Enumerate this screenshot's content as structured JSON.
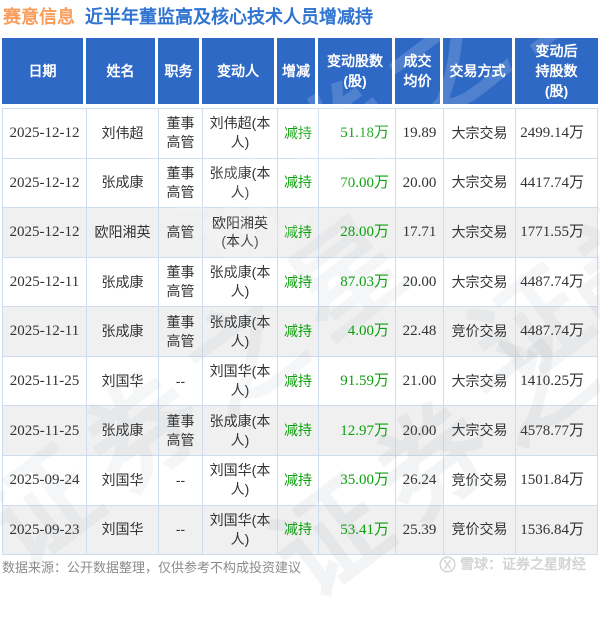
{
  "title": {
    "stock": "赛意信息",
    "subtitle": "近半年董监高及核心技术人员增减持"
  },
  "table": {
    "header_lines": [
      "日期",
      "姓名",
      "职务",
      "变动人",
      "增减",
      "变动股数\n(股)",
      "成交\n均价",
      "交易方式",
      "变动后\n持股数\n(股)"
    ]
  },
  "chart_data": {
    "type": "table",
    "title": "赛意信息 近半年董监高及核心技术人员增减持",
    "columns": [
      "日期",
      "姓名",
      "职务",
      "变动人",
      "增减",
      "变动股数(股)",
      "成交均价",
      "交易方式",
      "变动后持股数(股)"
    ],
    "rows": [
      [
        "2025-12-12",
        "刘伟超",
        "董事高管",
        "刘伟超(本人)",
        "减持",
        "51.18万",
        "19.89",
        "大宗交易",
        "2499.14万"
      ],
      [
        "2025-12-12",
        "张成康",
        "董事高管",
        "张成康(本人)",
        "减持",
        "70.00万",
        "20.00",
        "大宗交易",
        "4417.74万"
      ],
      [
        "2025-12-12",
        "欧阳湘英",
        "高管",
        "欧阳湘英(本人)",
        "减持",
        "28.00万",
        "17.71",
        "大宗交易",
        "1771.55万"
      ],
      [
        "2025-12-11",
        "张成康",
        "董事高管",
        "张成康(本人)",
        "减持",
        "87.03万",
        "20.00",
        "大宗交易",
        "4487.74万"
      ],
      [
        "2025-12-11",
        "张成康",
        "董事高管",
        "张成康(本人)",
        "减持",
        "4.00万",
        "22.48",
        "竞价交易",
        "4487.74万"
      ],
      [
        "2025-11-25",
        "刘国华",
        "--",
        "刘国华(本人)",
        "减持",
        "91.59万",
        "21.00",
        "大宗交易",
        "1410.25万"
      ],
      [
        "2025-11-25",
        "张成康",
        "董事高管",
        "张成康(本人)",
        "减持",
        "12.97万",
        "20.00",
        "大宗交易",
        "4578.77万"
      ],
      [
        "2025-09-24",
        "刘国华",
        "--",
        "刘国华(本人)",
        "减持",
        "35.00万",
        "26.24",
        "竞价交易",
        "1501.84万"
      ],
      [
        "2025-09-23",
        "刘国华",
        "--",
        "刘国华(本人)",
        "减持",
        "53.41万",
        "25.39",
        "竞价交易",
        "1536.84万"
      ]
    ]
  },
  "footer": {
    "source_note": "数据来源：公开数据整理，仅供参考不构成投资建议",
    "brand": "雪球：证券之星财经"
  },
  "watermark": {
    "text": "证券之星"
  },
  "colors": {
    "header_bg": "#2f69c6",
    "title_orange": "#f99d5b",
    "title_blue": "#2f74d0",
    "decrease_green": "#0ca10c",
    "border": "#cfdcef",
    "row_shade": "#f0f0f0"
  }
}
